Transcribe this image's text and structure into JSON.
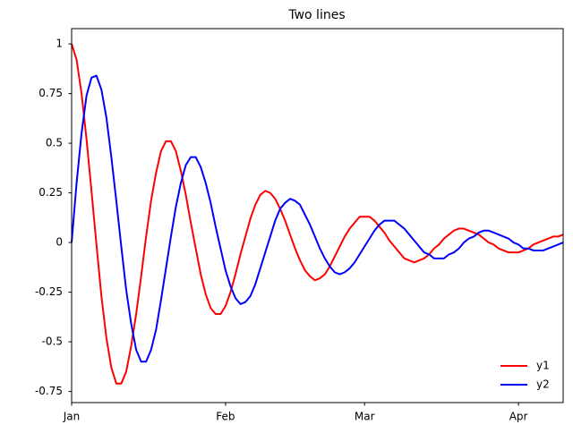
{
  "chart_data": {
    "type": "line",
    "title": "Two lines",
    "x": [
      0,
      1,
      2,
      3,
      4,
      5,
      6,
      7,
      8,
      9,
      10,
      11,
      12,
      13,
      14,
      15,
      16,
      17,
      18,
      19,
      20,
      21,
      22,
      23,
      24,
      25,
      26,
      27,
      28,
      29,
      30,
      31,
      32,
      33,
      34,
      35,
      36,
      37,
      38,
      39,
      40,
      41,
      42,
      43,
      44,
      45,
      46,
      47,
      48,
      49,
      50,
      51,
      52,
      53,
      54,
      55,
      56,
      57,
      58,
      59,
      60,
      61,
      62,
      63,
      64,
      65,
      66,
      67,
      68,
      69,
      70,
      71,
      72,
      73,
      74,
      75,
      76,
      77,
      78,
      79,
      80,
      81,
      82,
      83,
      84,
      85,
      86,
      87,
      88,
      89,
      90,
      91,
      92,
      93,
      94,
      95,
      96,
      97,
      98,
      99
    ],
    "series": [
      {
        "name": "y1",
        "color": "#ff0000",
        "values": [
          1.0,
          0.92,
          0.75,
          0.52,
          0.26,
          -0.01,
          -0.27,
          -0.48,
          -0.63,
          -0.71,
          -0.71,
          -0.65,
          -0.52,
          -0.36,
          -0.17,
          0.03,
          0.21,
          0.35,
          0.46,
          0.51,
          0.51,
          0.46,
          0.36,
          0.24,
          0.1,
          -0.03,
          -0.16,
          -0.26,
          -0.33,
          -0.36,
          -0.36,
          -0.32,
          -0.25,
          -0.16,
          -0.06,
          0.03,
          0.12,
          0.19,
          0.24,
          0.26,
          0.25,
          0.22,
          0.17,
          0.11,
          0.04,
          -0.03,
          -0.09,
          -0.14,
          -0.17,
          -0.19,
          -0.18,
          -0.16,
          -0.12,
          -0.07,
          -0.02,
          0.03,
          0.07,
          0.1,
          0.13,
          0.13,
          0.13,
          0.11,
          0.08,
          0.05,
          0.01,
          -0.02,
          -0.05,
          -0.08,
          -0.09,
          -0.1,
          -0.09,
          -0.08,
          -0.06,
          -0.03,
          -0.01,
          0.02,
          0.04,
          0.06,
          0.07,
          0.07,
          0.06,
          0.05,
          0.04,
          0.02,
          0,
          -0.01,
          -0.03,
          -0.04,
          -0.05,
          -0.05,
          -0.05,
          -0.04,
          -0.03,
          -0.01,
          0,
          0.01,
          0.02,
          0.03,
          0.03,
          0.04
        ]
      },
      {
        "name": "y2",
        "color": "#0000ff",
        "values": [
          0,
          0.3,
          0.55,
          0.74,
          0.83,
          0.84,
          0.77,
          0.63,
          0.43,
          0.21,
          -0.02,
          -0.24,
          -0.41,
          -0.54,
          -0.6,
          -0.6,
          -0.54,
          -0.44,
          -0.29,
          -0.13,
          0.03,
          0.18,
          0.3,
          0.39,
          0.43,
          0.43,
          0.38,
          0.3,
          0.2,
          0.08,
          -0.03,
          -0.14,
          -0.22,
          -0.28,
          -0.31,
          -0.3,
          -0.27,
          -0.21,
          -0.13,
          -0.05,
          0.03,
          0.11,
          0.17,
          0.2,
          0.22,
          0.21,
          0.19,
          0.14,
          0.09,
          0.03,
          -0.03,
          -0.08,
          -0.12,
          -0.15,
          -0.16,
          -0.15,
          -0.13,
          -0.1,
          -0.06,
          -0.02,
          0.02,
          0.06,
          0.09,
          0.11,
          0.11,
          0.11,
          0.09,
          0.07,
          0.04,
          0.01,
          -0.02,
          -0.05,
          -0.06,
          -0.08,
          -0.08,
          -0.08,
          -0.06,
          -0.05,
          -0.03,
          0,
          0.02,
          0.03,
          0.05,
          0.06,
          0.06,
          0.05,
          0.04,
          0.03,
          0.02,
          0,
          -0.01,
          -0.03,
          -0.03,
          -0.04,
          -0.04,
          -0.04,
          -0.03,
          -0.02,
          -0.01,
          0
        ]
      }
    ],
    "xlim": [
      0,
      99
    ],
    "xticks": [
      {
        "value": 0,
        "label": "Jan"
      },
      {
        "value": 31,
        "label": "Feb"
      },
      {
        "value": 59,
        "label": "Mar"
      },
      {
        "value": 90,
        "label": "Apr"
      }
    ],
    "ylim": [
      -0.806,
      1.077
    ],
    "yticks": [
      -0.75,
      -0.5,
      -0.25,
      0,
      0.25,
      0.5,
      0.75,
      1
    ],
    "legend": "lower right"
  }
}
